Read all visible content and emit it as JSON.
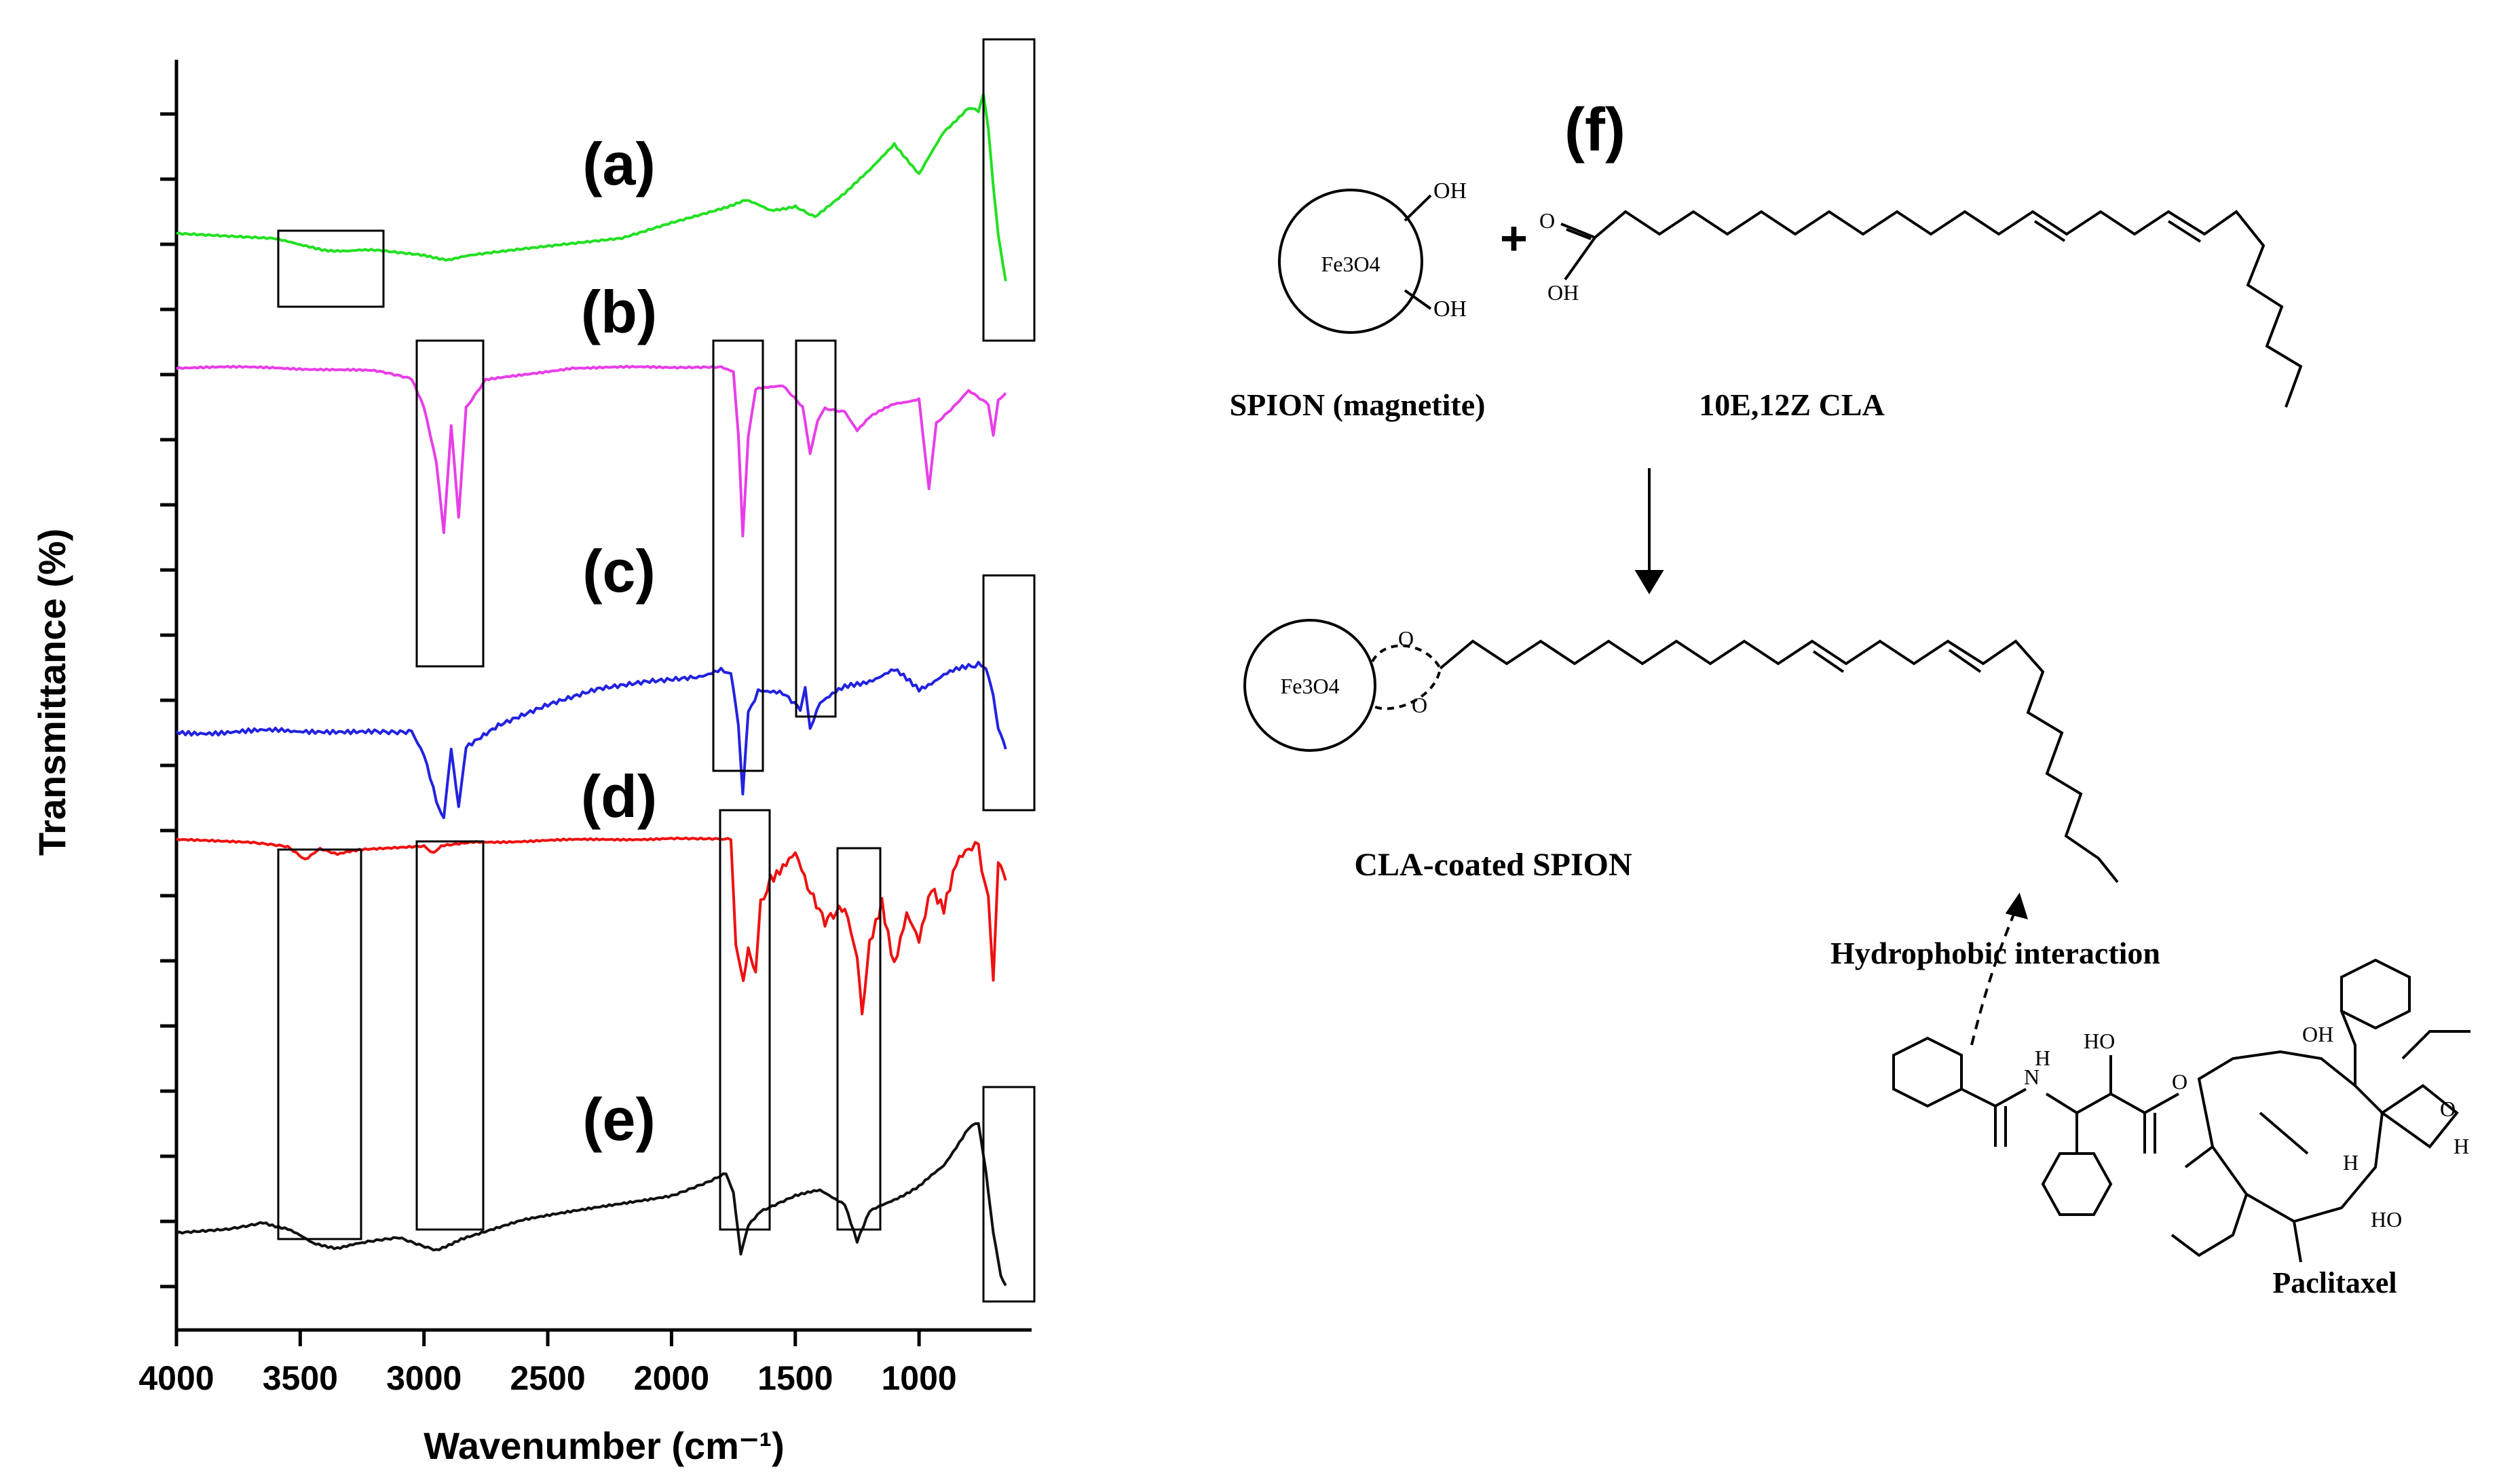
{
  "chart_data": {
    "type": "line",
    "xlabel": "Wavenumber (cm⁻¹)",
    "ylabel": "Transmittance (%)",
    "xlim": [
      4000,
      600
    ],
    "x_ticks": [
      "4000",
      "3500",
      "3000",
      "2500",
      "2000",
      "1500",
      "1000"
    ],
    "x_tick_values": [
      4000,
      3500,
      3000,
      2500,
      2000,
      1500,
      1000
    ],
    "y_scale": "arbitrary (stacked, no tick labels)",
    "grid": false,
    "series": [
      {
        "name": "(a)",
        "color": "#22e022",
        "points": [
          [
            4000,
            0.26
          ],
          [
            3800,
            0.25
          ],
          [
            3600,
            0.24
          ],
          [
            3500,
            0.2
          ],
          [
            3400,
            0.18
          ],
          [
            3300,
            0.17
          ],
          [
            3200,
            0.18
          ],
          [
            3000,
            0.15
          ],
          [
            2900,
            0.13
          ],
          [
            2800,
            0.15
          ],
          [
            2600,
            0.18
          ],
          [
            2400,
            0.21
          ],
          [
            2200,
            0.24
          ],
          [
            2000,
            0.32
          ],
          [
            1800,
            0.39
          ],
          [
            1700,
            0.43
          ],
          [
            1600,
            0.38
          ],
          [
            1500,
            0.4
          ],
          [
            1420,
            0.35
          ],
          [
            1300,
            0.47
          ],
          [
            1200,
            0.58
          ],
          [
            1100,
            0.72
          ],
          [
            1000,
            0.56
          ],
          [
            900,
            0.78
          ],
          [
            800,
            0.9
          ],
          [
            760,
            0.88
          ],
          [
            740,
            0.97
          ],
          [
            720,
            0.8
          ],
          [
            700,
            0.5
          ],
          [
            680,
            0.25
          ],
          [
            650,
            0.02
          ]
        ]
      },
      {
        "name": "(b)",
        "color": "#e83ee8",
        "points": [
          [
            4000,
            0.92
          ],
          [
            3600,
            0.92
          ],
          [
            3200,
            0.9
          ],
          [
            3050,
            0.86
          ],
          [
            3000,
            0.7
          ],
          [
            2950,
            0.4
          ],
          [
            2920,
            0.02
          ],
          [
            2890,
            0.6
          ],
          [
            2860,
            0.1
          ],
          [
            2830,
            0.7
          ],
          [
            2750,
            0.85
          ],
          [
            2400,
            0.92
          ],
          [
            2000,
            0.92
          ],
          [
            1800,
            0.92
          ],
          [
            1750,
            0.9
          ],
          [
            1730,
            0.55
          ],
          [
            1712,
            0.0
          ],
          [
            1690,
            0.55
          ],
          [
            1660,
            0.8
          ],
          [
            1550,
            0.82
          ],
          [
            1470,
            0.7
          ],
          [
            1440,
            0.45
          ],
          [
            1410,
            0.62
          ],
          [
            1380,
            0.7
          ],
          [
            1300,
            0.68
          ],
          [
            1250,
            0.58
          ],
          [
            1200,
            0.65
          ],
          [
            1100,
            0.72
          ],
          [
            1000,
            0.75
          ],
          [
            960,
            0.25
          ],
          [
            930,
            0.62
          ],
          [
            850,
            0.72
          ],
          [
            800,
            0.8
          ],
          [
            720,
            0.72
          ],
          [
            700,
            0.55
          ],
          [
            680,
            0.75
          ],
          [
            650,
            0.78
          ]
        ]
      },
      {
        "name": "(c)",
        "color": "#2222e0",
        "points": [
          [
            4000,
            0.38
          ],
          [
            3600,
            0.38
          ],
          [
            3500,
            0.39
          ],
          [
            3200,
            0.38
          ],
          [
            3050,
            0.39
          ],
          [
            3000,
            0.28
          ],
          [
            2950,
            0.06
          ],
          [
            2920,
            0.0
          ],
          [
            2890,
            0.3
          ],
          [
            2860,
            0.05
          ],
          [
            2830,
            0.3
          ],
          [
            2700,
            0.4
          ],
          [
            2500,
            0.5
          ],
          [
            2300,
            0.58
          ],
          [
            2100,
            0.62
          ],
          [
            1900,
            0.64
          ],
          [
            1800,
            0.66
          ],
          [
            1760,
            0.64
          ],
          [
            1730,
            0.4
          ],
          [
            1712,
            0.1
          ],
          [
            1690,
            0.46
          ],
          [
            1650,
            0.58
          ],
          [
            1550,
            0.55
          ],
          [
            1480,
            0.48
          ],
          [
            1460,
            0.6
          ],
          [
            1440,
            0.4
          ],
          [
            1400,
            0.52
          ],
          [
            1300,
            0.58
          ],
          [
            1200,
            0.62
          ],
          [
            1100,
            0.66
          ],
          [
            1000,
            0.58
          ],
          [
            900,
            0.64
          ],
          [
            800,
            0.68
          ],
          [
            760,
            0.7
          ],
          [
            730,
            0.66
          ],
          [
            700,
            0.55
          ],
          [
            680,
            0.4
          ],
          [
            650,
            0.3
          ]
        ]
      },
      {
        "name": "(d)",
        "color": "#ee1111",
        "points": [
          [
            4000,
            0.97
          ],
          [
            3700,
            0.96
          ],
          [
            3550,
            0.93
          ],
          [
            3480,
            0.86
          ],
          [
            3420,
            0.92
          ],
          [
            3350,
            0.89
          ],
          [
            3250,
            0.92
          ],
          [
            3000,
            0.94
          ],
          [
            2960,
            0.9
          ],
          [
            2930,
            0.94
          ],
          [
            2800,
            0.96
          ],
          [
            2400,
            0.97
          ],
          [
            2000,
            0.98
          ],
          [
            1800,
            0.98
          ],
          [
            1760,
            0.97
          ],
          [
            1740,
            0.4
          ],
          [
            1710,
            0.2
          ],
          [
            1690,
            0.35
          ],
          [
            1660,
            0.25
          ],
          [
            1640,
            0.6
          ],
          [
            1600,
            0.78
          ],
          [
            1500,
            0.88
          ],
          [
            1450,
            0.7
          ],
          [
            1380,
            0.5
          ],
          [
            1300,
            0.6
          ],
          [
            1250,
            0.3
          ],
          [
            1230,
            0.02
          ],
          [
            1200,
            0.4
          ],
          [
            1150,
            0.65
          ],
          [
            1100,
            0.3
          ],
          [
            1050,
            0.55
          ],
          [
            1000,
            0.4
          ],
          [
            950,
            0.72
          ],
          [
            900,
            0.62
          ],
          [
            850,
            0.85
          ],
          [
            800,
            0.9
          ],
          [
            760,
            0.95
          ],
          [
            720,
            0.65
          ],
          [
            700,
            0.2
          ],
          [
            680,
            0.8
          ],
          [
            650,
            0.75
          ]
        ]
      },
      {
        "name": "(e)",
        "color": "#111111",
        "points": [
          [
            4000,
            0.3
          ],
          [
            3800,
            0.32
          ],
          [
            3650,
            0.35
          ],
          [
            3550,
            0.32
          ],
          [
            3450,
            0.25
          ],
          [
            3350,
            0.23
          ],
          [
            3250,
            0.25
          ],
          [
            3100,
            0.28
          ],
          [
            2950,
            0.22
          ],
          [
            2850,
            0.27
          ],
          [
            2600,
            0.36
          ],
          [
            2300,
            0.42
          ],
          [
            2000,
            0.48
          ],
          [
            1850,
            0.54
          ],
          [
            1780,
            0.58
          ],
          [
            1750,
            0.5
          ],
          [
            1720,
            0.2
          ],
          [
            1690,
            0.34
          ],
          [
            1640,
            0.4
          ],
          [
            1500,
            0.48
          ],
          [
            1400,
            0.5
          ],
          [
            1300,
            0.44
          ],
          [
            1250,
            0.26
          ],
          [
            1200,
            0.4
          ],
          [
            1100,
            0.46
          ],
          [
            1000,
            0.52
          ],
          [
            900,
            0.62
          ],
          [
            800,
            0.8
          ],
          [
            760,
            0.82
          ],
          [
            730,
            0.6
          ],
          [
            700,
            0.3
          ],
          [
            670,
            0.1
          ],
          [
            650,
            0.05
          ]
        ]
      }
    ]
  },
  "figure_labels": {
    "a": "(a)",
    "b": "(b)",
    "c": "(c)",
    "d": "(d)",
    "e": "(e)",
    "f": "(f)"
  },
  "scheme": {
    "fe3o4": "Fe3O4",
    "oh": "OH",
    "o": "O",
    "ho": "HO",
    "h": "H",
    "nh": "H",
    "n": "N",
    "plus": "+",
    "spion_label": "SPION (magnetite)",
    "cla_label": "10E,12Z CLA",
    "coated_label": "CLA-coated SPION",
    "interaction_label": "Hydrophobic interaction",
    "paclitaxel_label": "Paclitaxel"
  },
  "colors": {
    "a": "#22e022",
    "b": "#e83ee8",
    "c": "#2222e0",
    "d": "#ee1111",
    "e": "#111111"
  }
}
